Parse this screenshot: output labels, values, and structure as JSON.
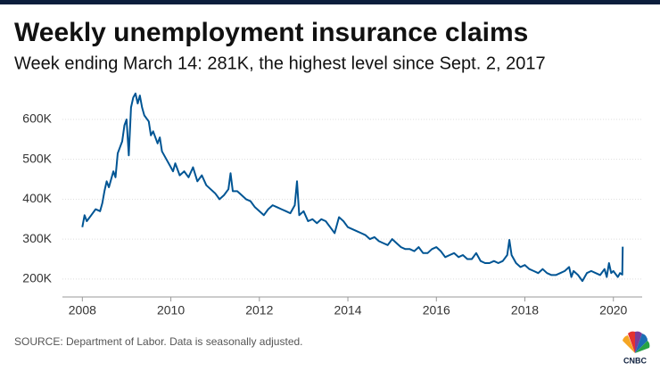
{
  "chart_data": {
    "type": "line",
    "title": "Weekly unemployment insurance claims",
    "subtitle": "Week ending March 14: 281K, the highest level since Sept. 2, 2017",
    "source": "SOURCE: Department of Labor. Data is seasonally adjusted.",
    "logo": "CNBC",
    "x": [
      2008.0,
      2008.05,
      2008.1,
      2008.2,
      2008.3,
      2008.4,
      2008.45,
      2008.5,
      2008.55,
      2008.6,
      2008.7,
      2008.75,
      2008.8,
      2008.85,
      2008.9,
      2008.95,
      2009.0,
      2009.05,
      2009.1,
      2009.15,
      2009.2,
      2009.25,
      2009.3,
      2009.35,
      2009.4,
      2009.5,
      2009.55,
      2009.6,
      2009.7,
      2009.75,
      2009.8,
      2009.9,
      2010.0,
      2010.05,
      2010.1,
      2010.2,
      2010.3,
      2010.4,
      2010.5,
      2010.6,
      2010.7,
      2010.8,
      2010.9,
      2011.0,
      2011.1,
      2011.2,
      2011.3,
      2011.35,
      2011.4,
      2011.5,
      2011.6,
      2011.7,
      2011.8,
      2011.9,
      2012.0,
      2012.1,
      2012.2,
      2012.3,
      2012.4,
      2012.5,
      2012.6,
      2012.7,
      2012.8,
      2012.85,
      2012.9,
      2013.0,
      2013.1,
      2013.2,
      2013.3,
      2013.4,
      2013.5,
      2013.6,
      2013.7,
      2013.8,
      2013.9,
      2014.0,
      2014.1,
      2014.2,
      2014.3,
      2014.4,
      2014.5,
      2014.6,
      2014.7,
      2014.8,
      2014.9,
      2015.0,
      2015.1,
      2015.2,
      2015.3,
      2015.4,
      2015.5,
      2015.6,
      2015.7,
      2015.8,
      2015.9,
      2016.0,
      2016.1,
      2016.2,
      2016.3,
      2016.4,
      2016.5,
      2016.6,
      2016.7,
      2016.8,
      2016.9,
      2017.0,
      2017.1,
      2017.2,
      2017.3,
      2017.4,
      2017.5,
      2017.6,
      2017.65,
      2017.7,
      2017.8,
      2017.9,
      2018.0,
      2018.1,
      2018.2,
      2018.3,
      2018.4,
      2018.5,
      2018.6,
      2018.7,
      2018.8,
      2018.9,
      2019.0,
      2019.05,
      2019.1,
      2019.2,
      2019.3,
      2019.4,
      2019.5,
      2019.6,
      2019.7,
      2019.8,
      2019.85,
      2019.9,
      2019.95,
      2020.0,
      2020.1,
      2020.15,
      2020.2,
      2020.21
    ],
    "series": [
      {
        "name": "Weekly claims",
        "color": "#005594",
        "values": [
          330,
          360,
          345,
          360,
          375,
          370,
          390,
          420,
          445,
          430,
          470,
          455,
          515,
          530,
          545,
          585,
          600,
          510,
          630,
          655,
          665,
          640,
          660,
          630,
          610,
          595,
          560,
          570,
          540,
          555,
          520,
          500,
          480,
          470,
          490,
          460,
          470,
          455,
          480,
          445,
          460,
          435,
          425,
          415,
          400,
          410,
          425,
          465,
          420,
          420,
          410,
          400,
          395,
          380,
          370,
          360,
          375,
          385,
          380,
          375,
          370,
          365,
          385,
          445,
          360,
          370,
          345,
          350,
          340,
          350,
          345,
          330,
          315,
          355,
          345,
          330,
          325,
          320,
          315,
          310,
          300,
          305,
          295,
          290,
          285,
          300,
          290,
          280,
          275,
          275,
          270,
          280,
          265,
          265,
          275,
          280,
          270,
          255,
          260,
          265,
          255,
          260,
          250,
          250,
          265,
          245,
          240,
          240,
          245,
          240,
          245,
          260,
          298,
          260,
          240,
          230,
          235,
          225,
          220,
          215,
          225,
          215,
          210,
          210,
          215,
          220,
          230,
          205,
          220,
          210,
          195,
          215,
          220,
          215,
          210,
          225,
          205,
          240,
          215,
          220,
          205,
          215,
          211,
          281
        ]
      }
    ],
    "xlim": [
      2007.55,
      2020.65
    ],
    "xticks": [
      2008,
      2010,
      2012,
      2014,
      2016,
      2018,
      2020
    ],
    "ylim": [
      155,
      687
    ],
    "yticks": [
      {
        "value": 200,
        "label": "200K"
      },
      {
        "value": 300,
        "label": "300K"
      },
      {
        "value": 400,
        "label": "400K"
      },
      {
        "value": 500,
        "label": "500K"
      },
      {
        "value": 600,
        "label": "600K"
      }
    ],
    "grid": true
  }
}
